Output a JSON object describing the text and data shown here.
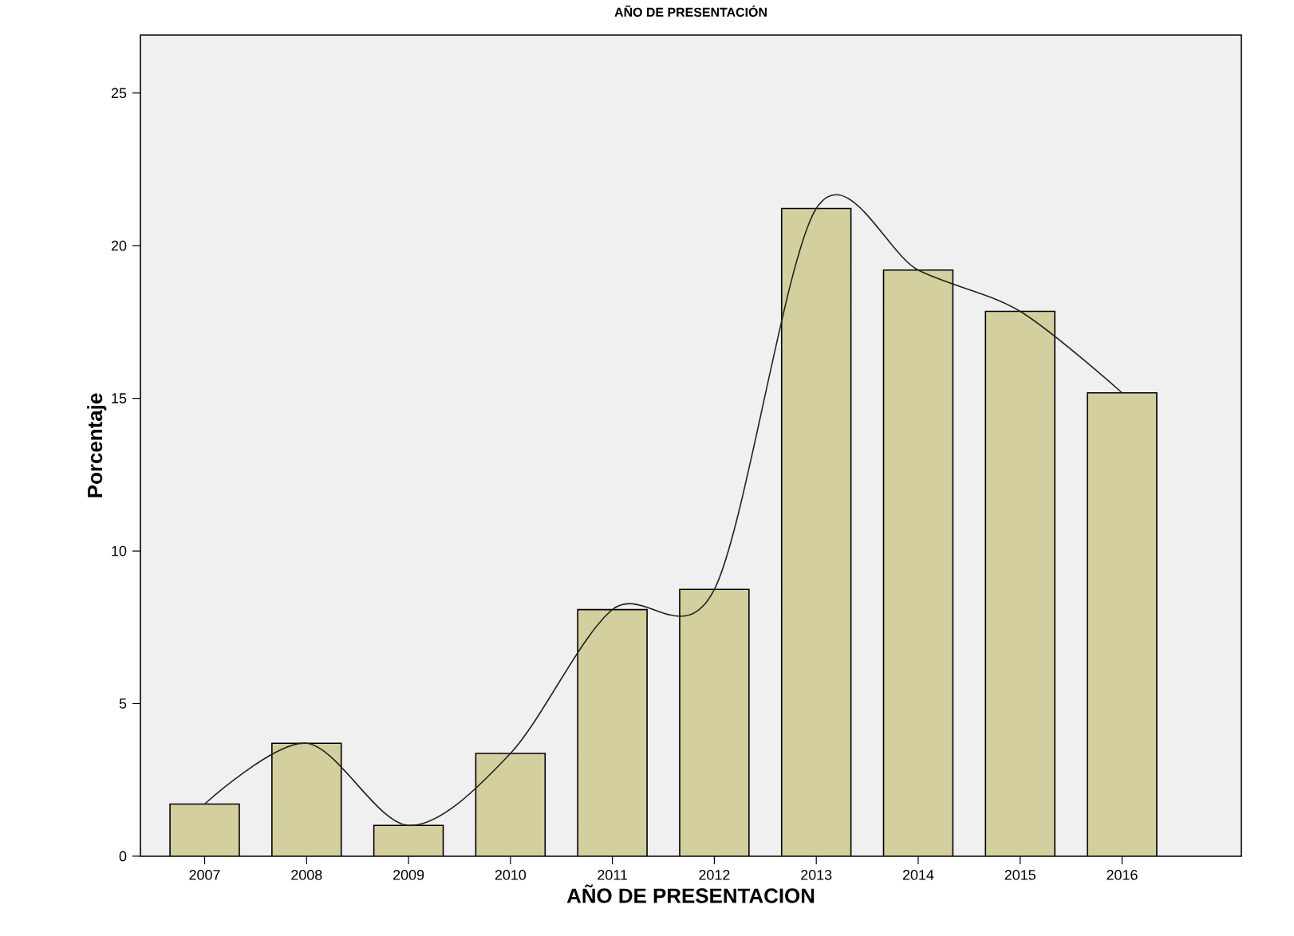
{
  "chart_data": {
    "type": "bar",
    "title": "AÑO DE PRESENTACIÓN",
    "xlabel": "AÑO DE PRESENTACION",
    "ylabel": "Porcentaje",
    "categories": [
      "2007",
      "2008",
      "2009",
      "2010",
      "2011",
      "2012",
      "2013",
      "2014",
      "2015",
      "2016"
    ],
    "series": [
      {
        "color": "#d3cf9f",
        "values": [
          1.71,
          3.7,
          1.01,
          3.37,
          8.08,
          8.74,
          21.22,
          19.2,
          17.85,
          15.18
        ]
      },
      {
        "type": "line",
        "color": "#222222",
        "values": [
          1.71,
          3.7,
          1.01,
          3.37,
          8.08,
          8.74,
          21.22,
          19.2,
          17.85,
          15.18
        ]
      }
    ],
    "ylim": [
      0,
      26.9
    ],
    "yticks": [
      0,
      5,
      10,
      15,
      20,
      25
    ],
    "grid": false,
    "marker": "none",
    "line_style": "solid"
  }
}
